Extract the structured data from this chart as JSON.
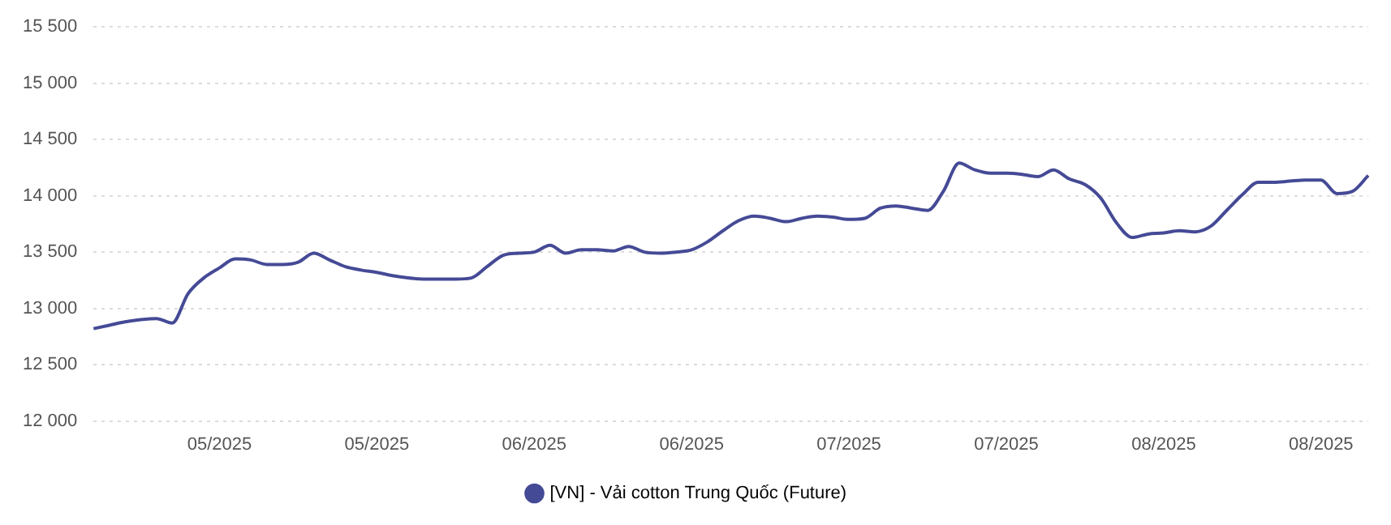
{
  "chart_data": {
    "type": "line",
    "categories": [
      null,
      null,
      null,
      null,
      null,
      null,
      null,
      null,
      "05/2025",
      null,
      null,
      null,
      null,
      null,
      null,
      null,
      null,
      null,
      "05/2025",
      null,
      null,
      null,
      null,
      null,
      null,
      null,
      null,
      null,
      "06/2025",
      null,
      null,
      null,
      null,
      null,
      null,
      null,
      null,
      null,
      "06/2025",
      null,
      null,
      null,
      null,
      null,
      null,
      null,
      null,
      null,
      "07/2025",
      null,
      null,
      null,
      null,
      null,
      null,
      null,
      null,
      null,
      "07/2025",
      null,
      null,
      null,
      null,
      null,
      null,
      null,
      null,
      null,
      "08/2025",
      null,
      null,
      null,
      null,
      null,
      null,
      null,
      null,
      null,
      "08/2025",
      null,
      null,
      null
    ],
    "series": [
      {
        "name": "[VN] - Vải cotton Trung Quốc (Future)",
        "color": "#454a96",
        "values": [
          12820,
          12850,
          12880,
          12900,
          12910,
          12870,
          13130,
          13270,
          13360,
          13440,
          13430,
          13390,
          13390,
          13410,
          13490,
          13430,
          13370,
          13340,
          13320,
          13290,
          13270,
          13260,
          13260,
          13260,
          13270,
          13370,
          13470,
          13490,
          13500,
          13560,
          13490,
          13520,
          13520,
          13510,
          13550,
          13500,
          13490,
          13500,
          13520,
          13590,
          13690,
          13780,
          13820,
          13800,
          13770,
          13800,
          13820,
          13810,
          13790,
          13800,
          13890,
          13910,
          13890,
          13870,
          14040,
          14290,
          14230,
          14200,
          14200,
          14190,
          14170,
          14230,
          14150,
          14100,
          13980,
          13760,
          13630,
          13660,
          13670,
          13690,
          13680,
          13730,
          13870,
          14010,
          14120,
          14120,
          14130,
          14140,
          14140,
          14020,
          14040,
          14180
        ]
      }
    ],
    "ylim": [
      12000,
      15500
    ],
    "yticks": [
      {
        "value": 12000,
        "label": "12 000"
      },
      {
        "value": 12500,
        "label": "12 500"
      },
      {
        "value": 13000,
        "label": "13 000"
      },
      {
        "value": 13500,
        "label": "13 500"
      },
      {
        "value": 14000,
        "label": "14 000"
      },
      {
        "value": 14500,
        "label": "14 500"
      },
      {
        "value": 15000,
        "label": "15 000"
      },
      {
        "value": 15500,
        "label": "15 500"
      }
    ],
    "grid": "y",
    "legend": "bottom",
    "marker": "none",
    "line_style": "solid"
  }
}
